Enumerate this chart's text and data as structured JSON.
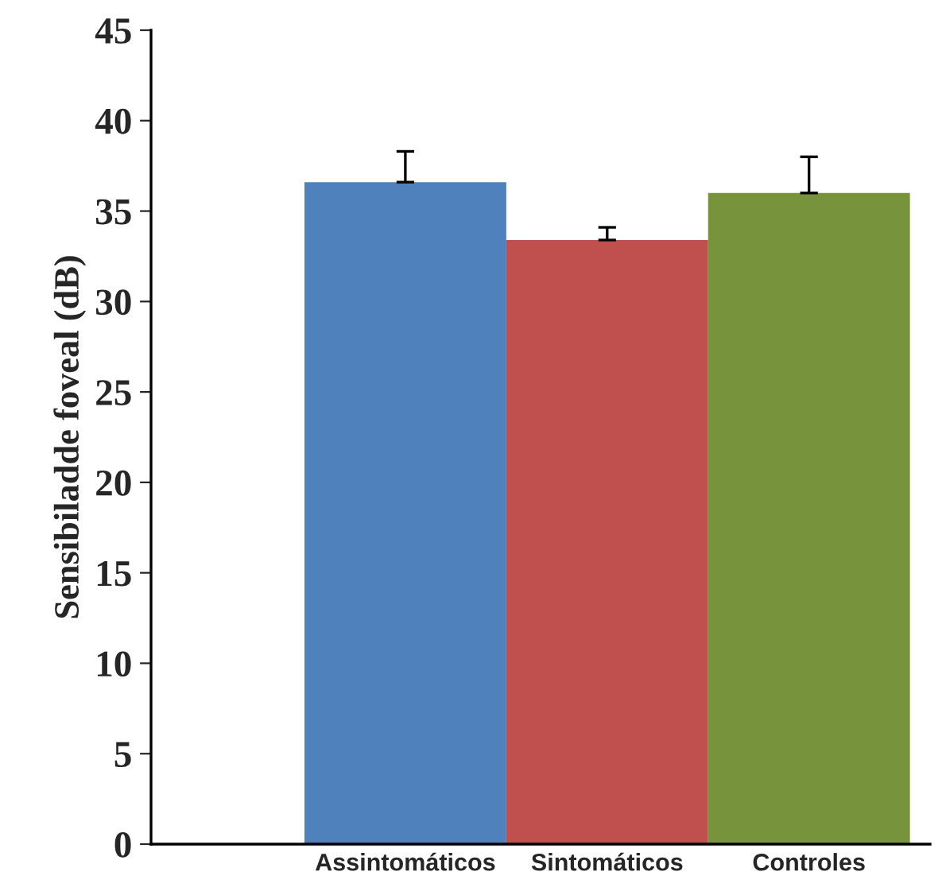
{
  "chart_data": {
    "type": "bar",
    "ylabel": "Sensibiladde foveal (dB)",
    "categories": [
      "Assintomáticos",
      "Sintomáticos",
      "Controles"
    ],
    "values": [
      36.6,
      33.4,
      36.0
    ],
    "colors": [
      "#4f81bd",
      "#c0504d",
      "#77933c"
    ],
    "errors": [
      [
        36.6,
        38.3
      ],
      [
        33.4,
        34.1
      ],
      [
        36.0,
        38.0
      ]
    ],
    "ylim": [
      0,
      45
    ],
    "yticks": [
      0,
      5,
      10,
      15,
      20,
      25,
      30,
      35,
      40,
      45
    ],
    "grid": false,
    "legend": false
  }
}
